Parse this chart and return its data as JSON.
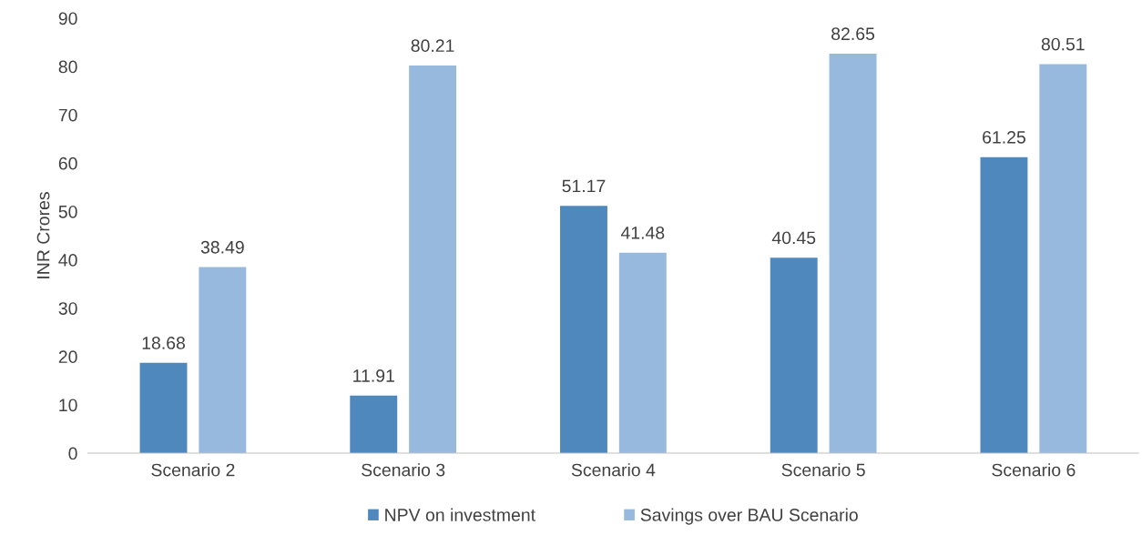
{
  "chart_data": {
    "type": "bar",
    "ylabel": "INR Crores",
    "categories": [
      "Scenario 2",
      "Scenario 3",
      "Scenario 4",
      "Scenario 5",
      "Scenario 6"
    ],
    "series": [
      {
        "name": "NPV on investment",
        "color": "#4f88bd",
        "values": [
          18.68,
          11.91,
          51.17,
          40.45,
          61.25
        ]
      },
      {
        "name": "Savings over BAU Scenario",
        "color": "#98b9de",
        "values": [
          38.49,
          80.21,
          41.48,
          82.65,
          80.51
        ]
      }
    ],
    "ylim": [
      0,
      90
    ],
    "yticks": [
      0,
      10,
      20,
      30,
      40,
      50,
      60,
      70,
      80,
      90
    ],
    "data_labels": true,
    "grid": false,
    "legend": "bottom"
  }
}
